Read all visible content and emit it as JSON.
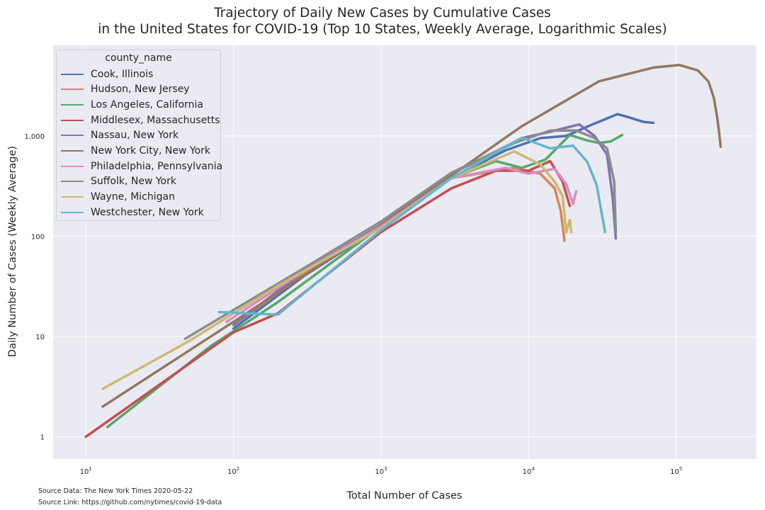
{
  "title_line1": "Trajectory of Daily New Cases by Cumulative Cases",
  "title_line2": "in the United States for COVID-19 (Top 10 States, Weekly Average, Logarithmic Scales)",
  "source_data": "Source Data: The New York Times 2020-05-22",
  "source_link": "Source Link: https://github.com/nytimes/covid-19-data",
  "legend_title": "county_name",
  "colors": {
    "background": "#eaeaf2",
    "grid": "#ffffff"
  },
  "chart_data": {
    "type": "line",
    "title": "Trajectory of Daily New Cases by Cumulative Cases in the United States for COVID-19 (Top 10 States, Weekly Average, Logarithmic Scales)",
    "xlabel": "Total Number of Cases",
    "ylabel": "Daily Number of Cases (Weekly Average)",
    "xscale": "log",
    "yscale": "log",
    "xlim": [
      6,
      350000
    ],
    "ylim": [
      0.6,
      8000
    ],
    "grid": true,
    "legend_position": "top-left",
    "x_ticks": [
      {
        "value": 10,
        "base": "10",
        "exp": "1"
      },
      {
        "value": 100,
        "base": "10",
        "exp": "2"
      },
      {
        "value": 1000,
        "base": "10",
        "exp": "3"
      },
      {
        "value": 10000,
        "base": "10",
        "exp": "4"
      },
      {
        "value": 100000,
        "base": "10",
        "exp": "5"
      }
    ],
    "y_ticks": [
      {
        "value": 1,
        "label": "1"
      },
      {
        "value": 10,
        "label": "10"
      },
      {
        "value": 100,
        "label": "100"
      },
      {
        "value": 1000,
        "label": "1,000"
      }
    ],
    "series": [
      {
        "name": "Cook, Illinois",
        "color": "#4c72b0",
        "x": [
          100,
          300,
          1000,
          3000,
          7000,
          12000,
          18000,
          27000,
          40000,
          50000,
          60000,
          70000
        ],
        "y": [
          12,
          40,
          125,
          380,
          720,
          950,
          1000,
          1300,
          1650,
          1500,
          1380,
          1350
        ]
      },
      {
        "name": "Hudson, New Jersey",
        "color": "#dd8452",
        "x": [
          100,
          300,
          1000,
          3000,
          8000,
          12000,
          15000,
          16500,
          17500
        ],
        "y": [
          13,
          42,
          130,
          380,
          480,
          420,
          300,
          180,
          90
        ]
      },
      {
        "name": "Los Angeles, California",
        "color": "#55a868",
        "x": [
          14,
          70,
          200,
          1000,
          3000,
          6000,
          9000,
          13000,
          19000,
          25000,
          30000,
          36000,
          43000
        ],
        "y": [
          1.25,
          8,
          22,
          125,
          380,
          560,
          480,
          580,
          1020,
          900,
          850,
          880,
          1020
        ]
      },
      {
        "name": "Middlesex, Massachusetts",
        "color": "#c44e52",
        "x": [
          10,
          100,
          200,
          1000,
          3000,
          6000,
          10000,
          14000,
          17000,
          19000
        ],
        "y": [
          1,
          11,
          17,
          110,
          300,
          450,
          450,
          560,
          350,
          200
        ]
      },
      {
        "name": "Nassau, New York",
        "color": "#8172b3",
        "x": [
          100,
          300,
          1000,
          3000,
          6000,
          9000,
          14000,
          22000,
          28000,
          34000,
          37000,
          39000
        ],
        "y": [
          13,
          45,
          130,
          420,
          700,
          950,
          1100,
          1300,
          1000,
          650,
          250,
          95
        ]
      },
      {
        "name": "New York City, New York",
        "color": "#937860",
        "x": [
          13,
          100,
          1000,
          9000,
          30000,
          70000,
          105000,
          140000,
          165000,
          180000,
          190000,
          195000,
          200000
        ],
        "y": [
          2,
          14,
          130,
          1250,
          3500,
          4800,
          5100,
          4500,
          3500,
          2400,
          1500,
          1100,
          780
        ]
      },
      {
        "name": "Philadelphia, Pennsylvania",
        "color": "#da8bc3",
        "x": [
          90,
          300,
          1000,
          3000,
          7000,
          10000,
          15000,
          18000,
          20000,
          21000
        ],
        "y": [
          14,
          45,
          125,
          380,
          480,
          420,
          470,
          330,
          210,
          280
        ]
      },
      {
        "name": "Suffolk, New York",
        "color": "#8c8c8c",
        "x": [
          47,
          300,
          1000,
          3000,
          8000,
          14000,
          21000,
          28000,
          34000,
          38000,
          39000
        ],
        "y": [
          9.5,
          48,
          140,
          430,
          850,
          1130,
          1130,
          950,
          750,
          350,
          110
        ]
      },
      {
        "name": "Wayne, Michigan",
        "color": "#ccb974",
        "x": [
          13,
          50,
          200,
          1000,
          3000,
          8000,
          12000,
          15000,
          17000,
          18000,
          19000,
          19500
        ],
        "y": [
          3,
          9,
          32,
          120,
          380,
          700,
          520,
          350,
          250,
          110,
          145,
          110
        ]
      },
      {
        "name": "Westchester, New York",
        "color": "#64b5cd",
        "x": [
          80,
          200,
          1000,
          3000,
          9000,
          14000,
          20000,
          25000,
          29000,
          31000,
          33000
        ],
        "y": [
          17.5,
          16.5,
          115,
          380,
          960,
          750,
          800,
          550,
          320,
          180,
          110
        ]
      }
    ]
  }
}
